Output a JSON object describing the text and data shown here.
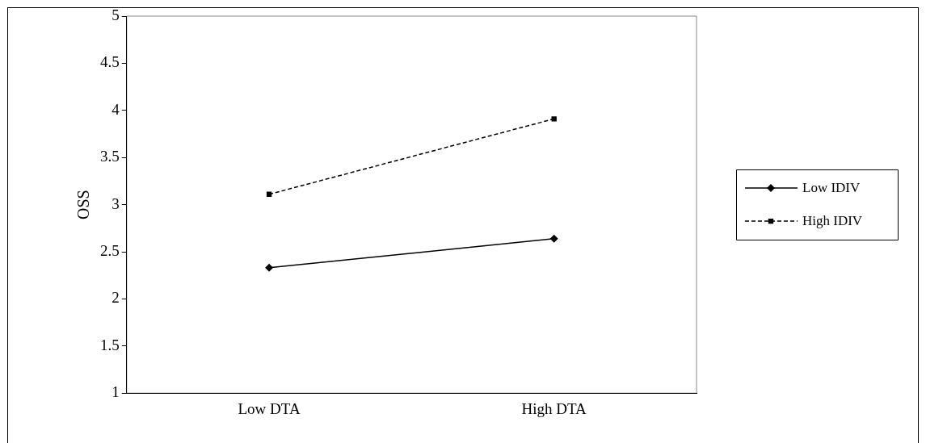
{
  "chart_data": {
    "type": "line",
    "ylabel": "OSS",
    "categories": [
      "Low DTA",
      "High DTA"
    ],
    "series": [
      {
        "name": "Low IDIV",
        "color": "#000000",
        "values": [
          2.33,
          2.64
        ],
        "marker": "diamond",
        "line_style": "solid"
      },
      {
        "name": "High IDIV",
        "color": "#000000",
        "values": [
          3.11,
          3.91
        ],
        "marker": "square",
        "line_style": "dashed"
      }
    ],
    "ylim": [
      1,
      5
    ],
    "yticks": [
      1,
      1.5,
      2,
      2.5,
      3,
      3.5,
      4,
      4.5,
      5
    ],
    "grid": false,
    "legend": "right"
  }
}
